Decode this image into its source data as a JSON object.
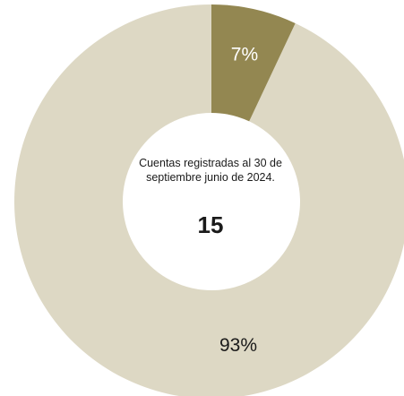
{
  "chart_data": {
    "type": "pie",
    "style": "donut",
    "categories": [
      "",
      ""
    ],
    "values": [
      93,
      7
    ],
    "labels": [
      "93%",
      "7%"
    ],
    "colors": [
      "#DDD8C4",
      "#938751"
    ],
    "center_caption": "Cuentas registradas al 30 de septiembre junio de 2024.",
    "center_value": "15"
  }
}
